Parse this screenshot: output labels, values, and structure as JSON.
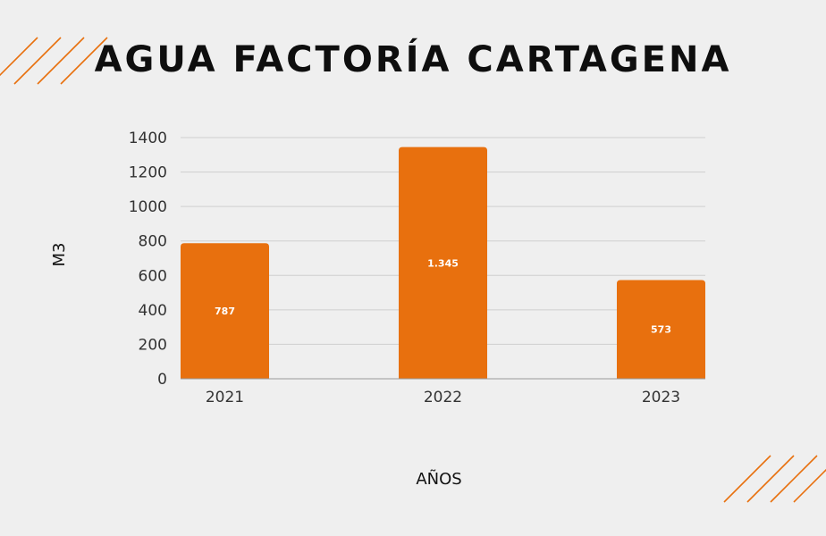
{
  "chart_data": {
    "type": "bar",
    "title": "AGUA FACTORÍA CARTAGENA",
    "xlabel": "AÑOS",
    "ylabel": "M3",
    "categories": [
      "2021",
      "2022",
      "2023"
    ],
    "values": [
      787,
      1345,
      573
    ],
    "data_labels": [
      "787",
      "1.345",
      "573"
    ],
    "ylim": [
      0,
      1400
    ],
    "yticks": [
      0,
      200,
      400,
      600,
      800,
      1000,
      1200,
      1400
    ],
    "grid": true,
    "legend": "none"
  },
  "colors": {
    "bar": "#e8700e",
    "background": "#efefef",
    "gridline": "#cfcfcf",
    "decor_stripes": "#e8700e"
  },
  "decorations": {
    "top_left": "orange-stripes-icon",
    "bottom_right": "orange-stripes-icon"
  }
}
